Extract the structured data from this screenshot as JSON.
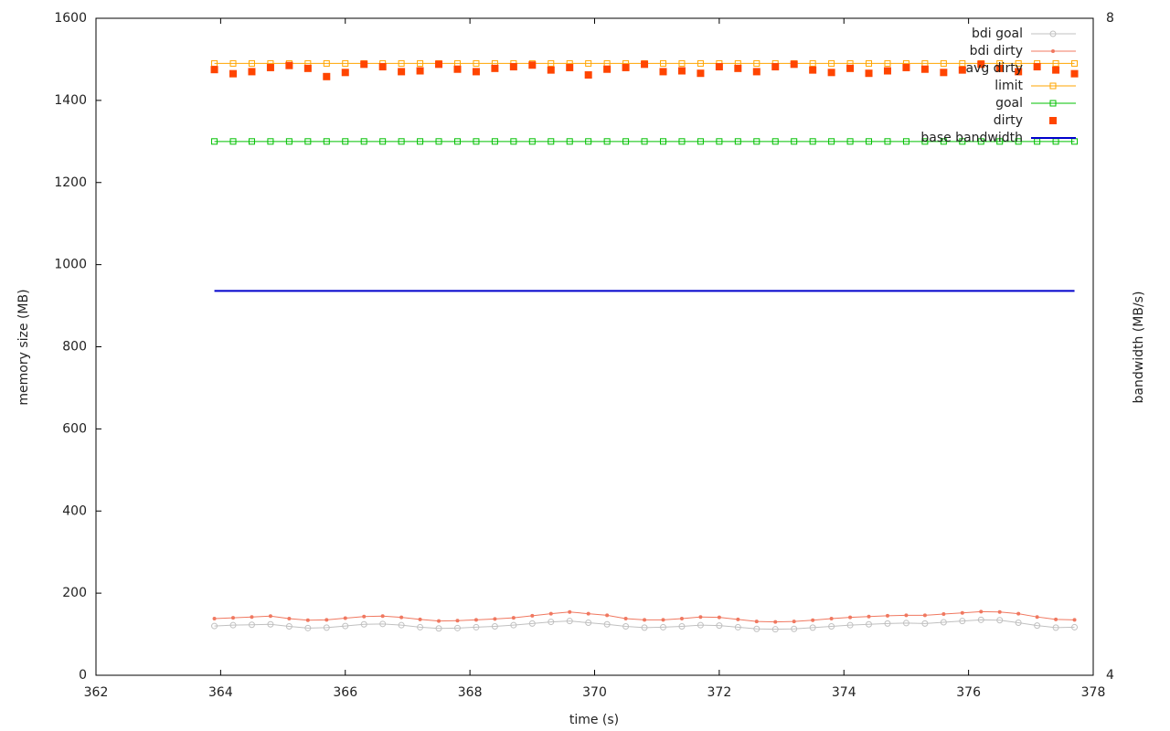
{
  "chart_data": {
    "type": "line",
    "xlabel": "time (s)",
    "ylabel": "memory size (MB)",
    "y2label": "bandwidth (MB/s)",
    "xlim": [
      362,
      378
    ],
    "xticks": [
      362,
      364,
      366,
      368,
      370,
      372,
      374,
      376,
      378
    ],
    "ylim": [
      0,
      1600
    ],
    "yticks": [
      0,
      200,
      400,
      600,
      800,
      1000,
      1200,
      1400,
      1600
    ],
    "y2lim": [
      4,
      8
    ],
    "y2ticks": [
      4,
      8
    ],
    "legend": "top-right",
    "x": [
      363.9,
      364.2,
      364.5,
      364.8,
      365.1,
      365.4,
      365.7,
      366.0,
      366.3,
      366.6,
      366.9,
      367.2,
      367.5,
      367.8,
      368.1,
      368.4,
      368.7,
      369.0,
      369.3,
      369.6,
      369.9,
      370.2,
      370.5,
      370.8,
      371.1,
      371.4,
      371.7,
      372.0,
      372.3,
      372.6,
      372.9,
      373.2,
      373.5,
      373.8,
      374.1,
      374.4,
      374.7,
      375.0,
      375.3,
      375.6,
      375.9,
      376.2,
      376.5,
      376.8,
      377.1,
      377.4,
      377.7
    ],
    "series": [
      {
        "name": "bdi goal",
        "color": "#c0c0c0",
        "marker": "open-circle",
        "line": true,
        "values": [
          120,
          122,
          123,
          124,
          119,
          115,
          116,
          120,
          124,
          125,
          122,
          117,
          114,
          115,
          117,
          119,
          122,
          126,
          130,
          132,
          128,
          124,
          119,
          116,
          117,
          119,
          122,
          121,
          117,
          113,
          112,
          113,
          116,
          119,
          122,
          124,
          126,
          127,
          126,
          129,
          132,
          135,
          134,
          128,
          121,
          116,
          117
        ]
      },
      {
        "name": "bdi dirty",
        "color": "#f07860",
        "marker": "dot",
        "line": true,
        "values": [
          138,
          140,
          142,
          144,
          138,
          134,
          135,
          139,
          143,
          144,
          141,
          136,
          132,
          133,
          135,
          137,
          140,
          145,
          150,
          154,
          150,
          146,
          138,
          135,
          135,
          138,
          142,
          141,
          136,
          131,
          130,
          131,
          134,
          138,
          141,
          143,
          145,
          146,
          146,
          149,
          152,
          155,
          154,
          150,
          142,
          136,
          135
        ]
      },
      {
        "name": "avg dirty",
        "values": [
          null,
          null,
          null,
          null,
          null,
          null,
          null,
          null,
          null,
          null,
          null,
          null,
          null,
          null,
          null,
          null,
          null,
          null,
          null,
          null,
          null,
          null,
          null,
          null,
          null,
          null,
          null,
          null,
          null,
          null,
          null,
          null,
          null,
          null,
          null,
          null,
          null,
          null,
          null,
          null,
          null,
          null,
          null,
          null,
          null,
          null,
          null
        ]
      },
      {
        "name": "limit",
        "color": "#ffa500",
        "marker": "open-square",
        "line": true,
        "values": [
          1490,
          1490,
          1490,
          1490,
          1490,
          1490,
          1490,
          1490,
          1490,
          1490,
          1490,
          1490,
          1490,
          1490,
          1490,
          1490,
          1490,
          1490,
          1490,
          1490,
          1490,
          1490,
          1490,
          1490,
          1490,
          1490,
          1490,
          1490,
          1490,
          1490,
          1490,
          1490,
          1490,
          1490,
          1490,
          1490,
          1490,
          1490,
          1490,
          1490,
          1490,
          1490,
          1490,
          1490,
          1490,
          1490,
          1490
        ]
      },
      {
        "name": "goal",
        "color": "#00c000",
        "marker": "open-square",
        "line": true,
        "values": [
          1300,
          1300,
          1300,
          1300,
          1300,
          1300,
          1300,
          1300,
          1300,
          1300,
          1300,
          1300,
          1300,
          1300,
          1300,
          1300,
          1300,
          1300,
          1300,
          1300,
          1300,
          1300,
          1300,
          1300,
          1300,
          1300,
          1300,
          1300,
          1300,
          1300,
          1300,
          1300,
          1300,
          1300,
          1300,
          1300,
          1300,
          1300,
          1300,
          1300,
          1300,
          1300,
          1300,
          1300,
          1300,
          1300,
          1300
        ]
      },
      {
        "name": "dirty",
        "color": "#ff4500",
        "marker": "square",
        "line": false,
        "values": [
          1475,
          1465,
          1470,
          1480,
          1485,
          1478,
          1458,
          1468,
          1488,
          1482,
          1470,
          1472,
          1488,
          1476,
          1470,
          1478,
          1482,
          1486,
          1474,
          1480,
          1462,
          1476,
          1480,
          1488,
          1470,
          1472,
          1466,
          1482,
          1478,
          1470,
          1482,
          1488,
          1474,
          1468,
          1478,
          1466,
          1472,
          1480,
          1476,
          1468,
          1474,
          1488,
          1478,
          1470,
          1482,
          1474,
          1465
        ]
      },
      {
        "name": "base bandwidth",
        "color": "#0000cc",
        "line": true,
        "axis": "y2",
        "values": [
          6.34,
          6.34,
          6.34,
          6.34,
          6.34,
          6.34,
          6.34,
          6.34,
          6.34,
          6.34,
          6.34,
          6.34,
          6.34,
          6.34,
          6.34,
          6.34,
          6.34,
          6.34,
          6.34,
          6.34,
          6.34,
          6.34,
          6.34,
          6.34,
          6.34,
          6.34,
          6.34,
          6.34,
          6.34,
          6.34,
          6.34,
          6.34,
          6.34,
          6.34,
          6.34,
          6.34,
          6.34,
          6.34,
          6.34,
          6.34,
          6.34,
          6.34,
          6.34,
          6.34,
          6.34,
          6.34,
          6.34
        ]
      }
    ]
  }
}
